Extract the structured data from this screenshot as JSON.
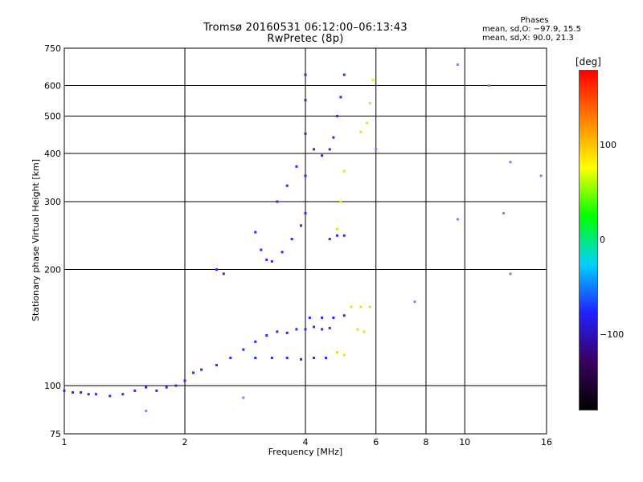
{
  "header": {
    "line1": "Tromsø 20160531 06:12:00–06:13:43",
    "line2": "RwPretec (8p)"
  },
  "stats": {
    "title": "Phases",
    "line_o": "mean, sd,O: −97.9, 15.5",
    "line_x": "mean, sd,X:  90.0, 21.3"
  },
  "colorbar": {
    "title": "[deg]",
    "ticks": [
      {
        "value": 100,
        "label": "100"
      },
      {
        "value": 0,
        "label": "0"
      },
      {
        "value": -100,
        "label": "−100"
      }
    ],
    "range": [
      -180,
      180
    ],
    "colors": [
      "#000000",
      "#3a0060",
      "#2020ff",
      "#00d0ff",
      "#00ff00",
      "#ffff00",
      "#ff8000",
      "#ff0000"
    ]
  },
  "chart_data": {
    "type": "scatter",
    "xlabel": "Frequency [MHz]",
    "ylabel": "Stationary phase Virtual Height [km]",
    "x_scale": "log",
    "y_scale": "log",
    "xlim": [
      1,
      16
    ],
    "ylim": [
      75,
      750
    ],
    "x_ticks": [
      1,
      2,
      4,
      6,
      8,
      10,
      16
    ],
    "x_tick_labels": [
      "1",
      "2",
      "4",
      "6",
      "8",
      "10",
      "16"
    ],
    "y_ticks": [
      75,
      100,
      200,
      300,
      400,
      500,
      600,
      750
    ],
    "y_tick_labels": [
      "75",
      "100",
      "200",
      "300",
      "400",
      "500",
      "600",
      "750"
    ],
    "grid": true,
    "series": [
      {
        "mode": "O",
        "color": "#2a2aff",
        "points": [
          [
            1.0,
            97
          ],
          [
            1.05,
            96
          ],
          [
            1.1,
            96
          ],
          [
            1.15,
            95
          ],
          [
            1.2,
            95
          ],
          [
            1.3,
            94
          ],
          [
            1.4,
            95
          ],
          [
            1.5,
            97
          ],
          [
            1.6,
            99
          ],
          [
            1.7,
            97
          ],
          [
            1.8,
            99
          ],
          [
            1.9,
            100
          ],
          [
            2.0,
            103
          ],
          [
            2.1,
            108
          ],
          [
            2.2,
            110
          ],
          [
            2.4,
            113
          ],
          [
            2.6,
            118
          ],
          [
            2.8,
            124
          ],
          [
            3.0,
            130
          ],
          [
            3.2,
            135
          ],
          [
            3.4,
            138
          ],
          [
            3.6,
            137
          ],
          [
            3.8,
            140
          ],
          [
            4.0,
            140
          ],
          [
            4.2,
            142
          ],
          [
            4.4,
            140
          ],
          [
            4.6,
            141
          ],
          [
            3.0,
            118
          ],
          [
            3.3,
            118
          ],
          [
            3.6,
            118
          ],
          [
            3.9,
            117
          ],
          [
            4.2,
            118
          ],
          [
            4.5,
            118
          ],
          [
            4.1,
            150
          ],
          [
            4.4,
            150
          ],
          [
            4.7,
            150
          ],
          [
            5.0,
            152
          ],
          [
            2.4,
            200
          ],
          [
            2.5,
            195
          ],
          [
            3.0,
            250
          ],
          [
            3.1,
            225
          ],
          [
            3.2,
            212
          ],
          [
            3.3,
            210
          ],
          [
            3.5,
            222
          ],
          [
            3.7,
            240
          ],
          [
            3.9,
            260
          ],
          [
            4.0,
            280
          ],
          [
            4.0,
            350
          ],
          [
            4.0,
            450
          ],
          [
            4.0,
            550
          ],
          [
            4.0,
            640
          ],
          [
            3.4,
            300
          ],
          [
            3.6,
            330
          ],
          [
            3.8,
            370
          ],
          [
            4.2,
            410
          ],
          [
            4.4,
            395
          ],
          [
            4.6,
            410
          ],
          [
            4.7,
            440
          ],
          [
            4.8,
            500
          ],
          [
            4.9,
            560
          ],
          [
            5.0,
            640
          ],
          [
            4.6,
            240
          ],
          [
            4.8,
            245
          ],
          [
            5.0,
            245
          ]
        ]
      },
      {
        "mode": "X",
        "color": "#e8e800",
        "points": [
          [
            5.2,
            160
          ],
          [
            5.5,
            160
          ],
          [
            5.8,
            160
          ],
          [
            5.4,
            140
          ],
          [
            5.6,
            138
          ],
          [
            4.8,
            122
          ],
          [
            5.0,
            120
          ],
          [
            4.8,
            255
          ],
          [
            4.9,
            300
          ],
          [
            5.0,
            360
          ],
          [
            5.5,
            455
          ],
          [
            5.7,
            480
          ],
          [
            5.8,
            540
          ],
          [
            5.9,
            620
          ]
        ]
      },
      {
        "mode": "noise",
        "color": "#8080ff",
        "points": [
          [
            9.6,
            680
          ],
          [
            9.6,
            270
          ],
          [
            11.5,
            600
          ],
          [
            12.5,
            280
          ],
          [
            13.0,
            380
          ],
          [
            13.0,
            195
          ],
          [
            15.5,
            350
          ],
          [
            1.6,
            86
          ],
          [
            2.8,
            93
          ],
          [
            6.0,
            410
          ],
          [
            7.5,
            165
          ]
        ]
      }
    ]
  }
}
